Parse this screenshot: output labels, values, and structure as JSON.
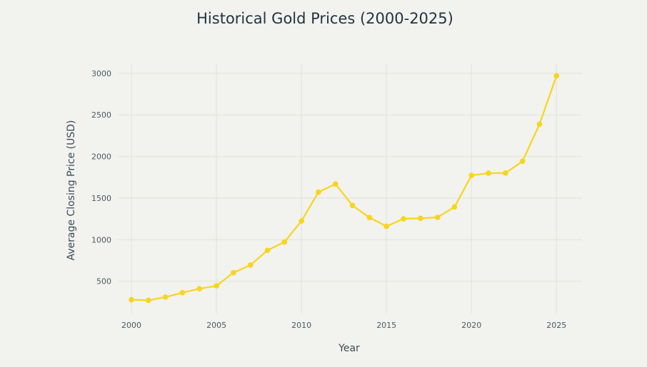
{
  "chart_data": {
    "type": "line",
    "title": "Historical Gold Prices (2000-2025)",
    "xlabel": "Year",
    "ylabel": "Average Closing Price (USD)",
    "x": [
      2000,
      2001,
      2002,
      2003,
      2004,
      2005,
      2006,
      2007,
      2008,
      2009,
      2010,
      2011,
      2012,
      2013,
      2014,
      2015,
      2016,
      2017,
      2018,
      2019,
      2020,
      2021,
      2022,
      2023,
      2024,
      2025
    ],
    "series": [
      {
        "name": "Average Closing Price (USD)",
        "color": "#f7d51d",
        "values": [
          279,
          271,
          310,
          363,
          410,
          445,
          603,
          695,
          872,
          972,
          1225,
          1572,
          1669,
          1411,
          1266,
          1160,
          1251,
          1257,
          1268,
          1393,
          1773,
          1799,
          1801,
          1943,
          2388,
          2970
        ]
      }
    ],
    "x_ticks": [
      "2000",
      "2005",
      "2010",
      "2015",
      "2020",
      "2025"
    ],
    "y_ticks": [
      "500",
      "1000",
      "1500",
      "2000",
      "2500",
      "3000"
    ],
    "xlim": [
      1999.2,
      2026.5
    ],
    "ylim": [
      112,
      3110
    ],
    "grid": true,
    "legend": "none"
  }
}
